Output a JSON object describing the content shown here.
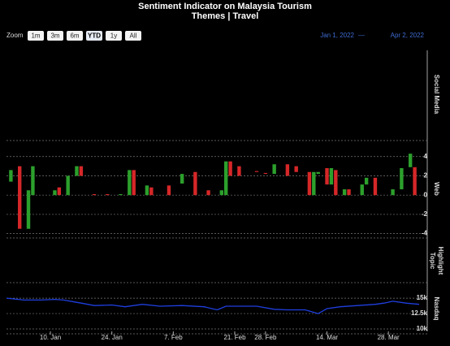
{
  "header": {
    "title": "Sentiment Indicator on Malaysia Tourism",
    "subtitle": "Themes | Travel"
  },
  "range_selector": {
    "zoom_label": "Zoom",
    "buttons": [
      "1m",
      "3m",
      "6m",
      "YTD",
      "1y",
      "All"
    ],
    "selected": 3,
    "from": "Jan 1, 2022",
    "separator": "—",
    "to": "Apr 2, 2022"
  },
  "chart_data": {
    "type": "stock",
    "xlim": [
      0,
      94
    ],
    "xticks": [
      {
        "value": 10,
        "label": "10. Jan"
      },
      {
        "value": 24,
        "label": "24. Jan"
      },
      {
        "value": 38,
        "label": "7. Feb"
      },
      {
        "value": 52,
        "label": "21. Feb"
      },
      {
        "value": 59,
        "label": "28. Feb"
      },
      {
        "value": 73,
        "label": "14. Mar"
      },
      {
        "value": 87,
        "label": "28. Mar"
      }
    ],
    "panes": [
      {
        "name": "Social Media",
        "type": "empty"
      },
      {
        "name": "Web",
        "type": "candlestick",
        "up_color": "#2ca02c",
        "down_color": "#d62728",
        "ylim": [
          -4.2,
          5.5
        ],
        "yticks": [
          4,
          2,
          0,
          -2,
          -4
        ],
        "x": [
          1,
          3,
          5,
          6,
          11,
          12,
          14,
          16,
          17,
          20,
          23,
          26,
          28,
          29,
          32,
          33,
          37,
          40,
          43,
          46,
          49,
          50,
          51,
          53,
          57,
          59,
          61,
          64,
          66,
          69,
          70,
          71,
          73,
          74,
          75,
          77,
          78,
          81,
          82,
          84,
          88,
          90,
          92,
          93
        ],
        "open": [
          1.4,
          3,
          -3.5,
          0,
          0,
          0.8,
          0,
          2,
          3,
          0.1,
          0.1,
          0,
          0,
          2.6,
          0,
          0.8,
          1,
          1.2,
          2.4,
          0.5,
          0,
          0,
          3.5,
          3,
          2.5,
          2.3,
          2.2,
          3.2,
          3,
          2.4,
          0,
          2.2,
          2.8,
          1.1,
          2.6,
          0,
          0.6,
          0,
          1.1,
          1.8,
          0,
          0.6,
          2.9,
          2.9
        ],
        "close": [
          2.6,
          -3.5,
          0.5,
          3,
          0.5,
          0,
          2,
          3,
          2,
          0,
          0,
          0.1,
          2.6,
          0,
          1,
          0,
          0,
          2.2,
          0,
          0,
          0.5,
          3.5,
          2,
          2,
          2.4,
          2.2,
          3.2,
          2,
          2.4,
          0,
          2.4,
          2.4,
          1.1,
          2.8,
          0,
          0.6,
          0,
          1.1,
          1.8,
          0,
          0.6,
          2.8,
          4.3,
          0
        ]
      },
      {
        "name": [
          "Topic",
          "Highlight"
        ],
        "type": "empty"
      },
      {
        "name": "Nasdaq",
        "type": "line",
        "color": "#1f3fe0",
        "ylim": [
          9600,
          17000
        ],
        "yticks": [
          {
            "value": 15000,
            "label": "15k"
          },
          {
            "value": 12500,
            "label": "12.5k"
          },
          {
            "value": 10000,
            "label": "10k"
          }
        ],
        "x": [
          0,
          4,
          8,
          11,
          13,
          17,
          20,
          24,
          27,
          31,
          35,
          40,
          45,
          48,
          50,
          53,
          57,
          61,
          64,
          68,
          71,
          73,
          76,
          80,
          84,
          86,
          88,
          91,
          94
        ],
        "values": [
          15000,
          14700,
          14700,
          14800,
          14700,
          14200,
          13800,
          13900,
          13600,
          14000,
          13700,
          13800,
          13600,
          13100,
          13700,
          13700,
          13700,
          13200,
          13100,
          13100,
          12500,
          13300,
          13600,
          13800,
          14000,
          14200,
          14500,
          14200,
          14000
        ]
      }
    ]
  }
}
